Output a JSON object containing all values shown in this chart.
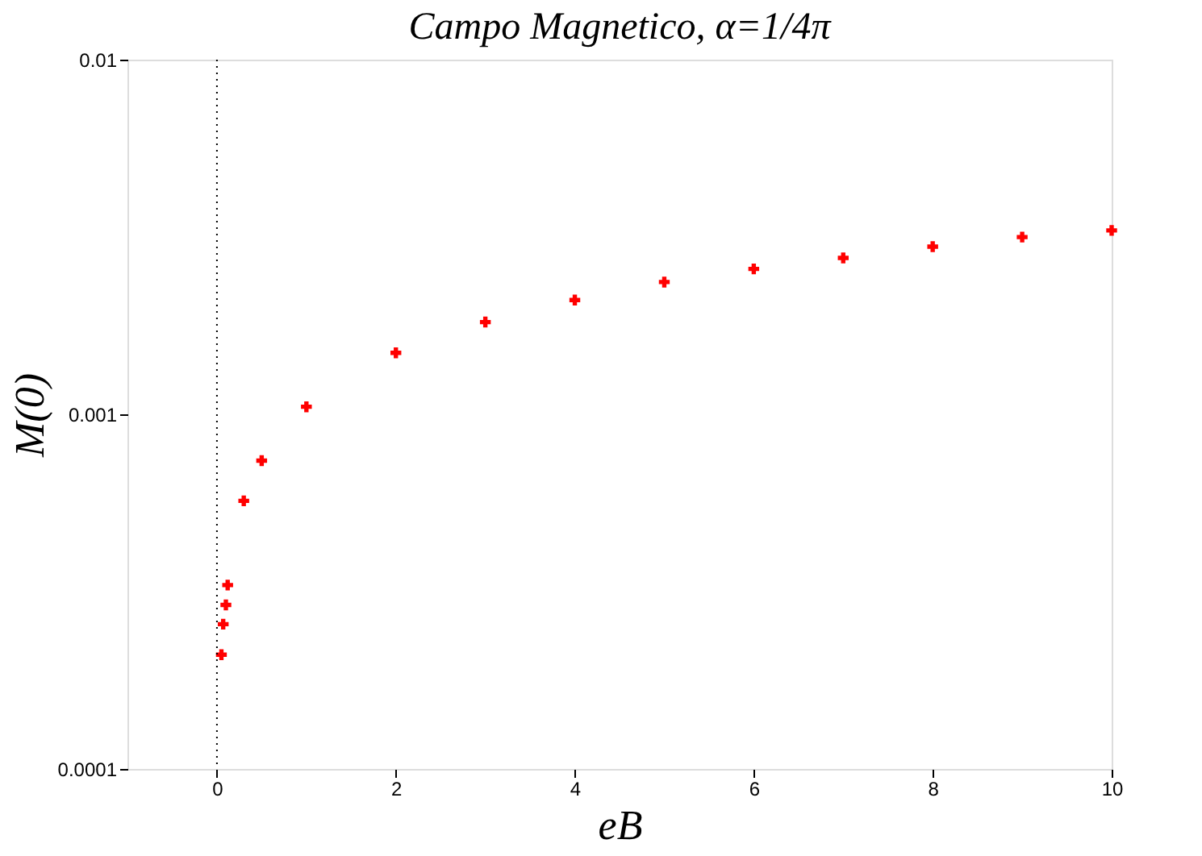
{
  "chart_data": {
    "type": "scatter",
    "title": "Campo Magnetico, α=1/4π",
    "xlabel": "eB",
    "ylabel": "M(0)",
    "series": [
      {
        "color": "#ff0000",
        "x": [
          0.05,
          0.07,
          0.1,
          0.12,
          0.3,
          0.5,
          1,
          2,
          3,
          4,
          5,
          6,
          7,
          8,
          9,
          10
        ],
        "values": [
          0.00021,
          0.000256,
          0.00029,
          0.00033,
          0.00057,
          0.00074,
          0.00105,
          0.00149,
          0.00182,
          0.0021,
          0.00236,
          0.00257,
          0.00276,
          0.00297,
          0.00316,
          0.0033
        ]
      }
    ],
    "xlim": [
      -1,
      10
    ],
    "xticks": [
      0,
      2,
      4,
      6,
      8,
      10
    ],
    "ylim": [
      0.0001,
      0.01
    ],
    "yticks": [
      0.0001,
      0.001,
      0.01
    ],
    "log": "y",
    "grid": false,
    "legend": false,
    "marker": "cross",
    "ref_lines": [
      {
        "axis": "x",
        "value": 0,
        "line_style": "dotted",
        "color": "#000000"
      }
    ]
  }
}
